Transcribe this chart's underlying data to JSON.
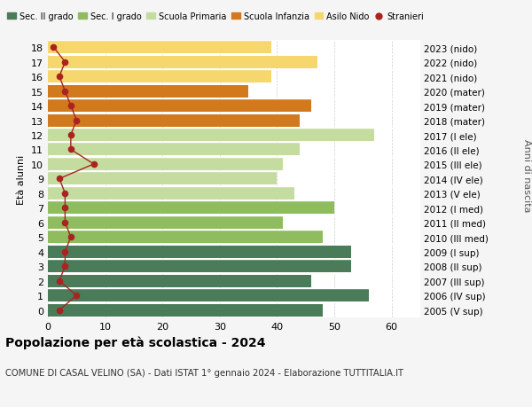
{
  "ages": [
    18,
    17,
    16,
    15,
    14,
    13,
    12,
    11,
    10,
    9,
    8,
    7,
    6,
    5,
    4,
    3,
    2,
    1,
    0
  ],
  "right_labels": [
    "2005 (V sup)",
    "2006 (IV sup)",
    "2007 (III sup)",
    "2008 (II sup)",
    "2009 (I sup)",
    "2010 (III med)",
    "2011 (II med)",
    "2012 (I med)",
    "2013 (V ele)",
    "2014 (IV ele)",
    "2015 (III ele)",
    "2016 (II ele)",
    "2017 (I ele)",
    "2018 (mater)",
    "2019 (mater)",
    "2020 (mater)",
    "2021 (nido)",
    "2022 (nido)",
    "2023 (nido)"
  ],
  "bar_values": [
    48,
    56,
    46,
    53,
    53,
    48,
    41,
    50,
    43,
    40,
    41,
    44,
    57,
    44,
    46,
    35,
    39,
    47,
    39
  ],
  "bar_colors": [
    "#4a7c59",
    "#4a7c59",
    "#4a7c59",
    "#4a7c59",
    "#4a7c59",
    "#8fbc5e",
    "#8fbc5e",
    "#8fbc5e",
    "#c5dca0",
    "#c5dca0",
    "#c5dca0",
    "#c5dca0",
    "#c5dca0",
    "#d2791e",
    "#d2791e",
    "#d2791e",
    "#f5d76e",
    "#f5d76e",
    "#f5d76e"
  ],
  "stranieri_values": [
    2,
    5,
    2,
    3,
    3,
    4,
    3,
    3,
    3,
    2,
    8,
    4,
    4,
    5,
    4,
    3,
    2,
    3,
    1
  ],
  "legend_labels": [
    "Sec. II grado",
    "Sec. I grado",
    "Scuola Primaria",
    "Scuola Infanzia",
    "Asilo Nido",
    "Stranieri"
  ],
  "legend_colors": [
    "#4a7c59",
    "#8fbc5e",
    "#c5dca0",
    "#d2791e",
    "#f5d76e",
    "#cc0000"
  ],
  "title": "Popolazione per età scolastica - 2024",
  "subtitle": "COMUNE DI CASAL VELINO (SA) - Dati ISTAT 1° gennaio 2024 - Elaborazione TUTTITALIA.IT",
  "ylabel_left": "Età alunni",
  "ylabel_right": "Anni di nascita",
  "xlim": [
    0,
    65
  ],
  "background_color": "#f5f5f5",
  "bar_background": "#ffffff"
}
